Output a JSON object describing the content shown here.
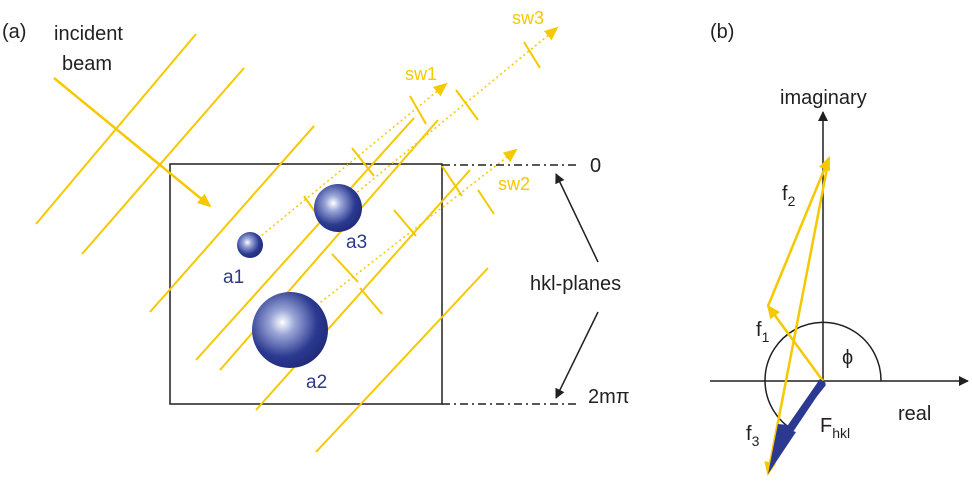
{
  "colors": {
    "beam": "#f5c800",
    "atom": "#2b3990",
    "ink": "#231f20",
    "fhkl": "#2b3990"
  },
  "panel_a": {
    "label": "(a)",
    "incident_label_line1": "incident",
    "incident_label_line2": "beam",
    "secondary_waves": [
      "sw1",
      "sw2",
      "sw3"
    ],
    "atoms": [
      "a1",
      "a2",
      "a3"
    ],
    "planes_label": "hkl-planes",
    "phase_top": "0",
    "phase_bottom": "2mπ"
  },
  "panel_b": {
    "label": "(b)",
    "axis_imaginary": "imaginary",
    "axis_real": "real",
    "angle_symbol": "ϕ",
    "vectors": [
      {
        "name": "f",
        "sub": "1"
      },
      {
        "name": "f",
        "sub": "2"
      },
      {
        "name": "f",
        "sub": "3"
      },
      {
        "name": "F",
        "sub": "hkl"
      }
    ]
  }
}
